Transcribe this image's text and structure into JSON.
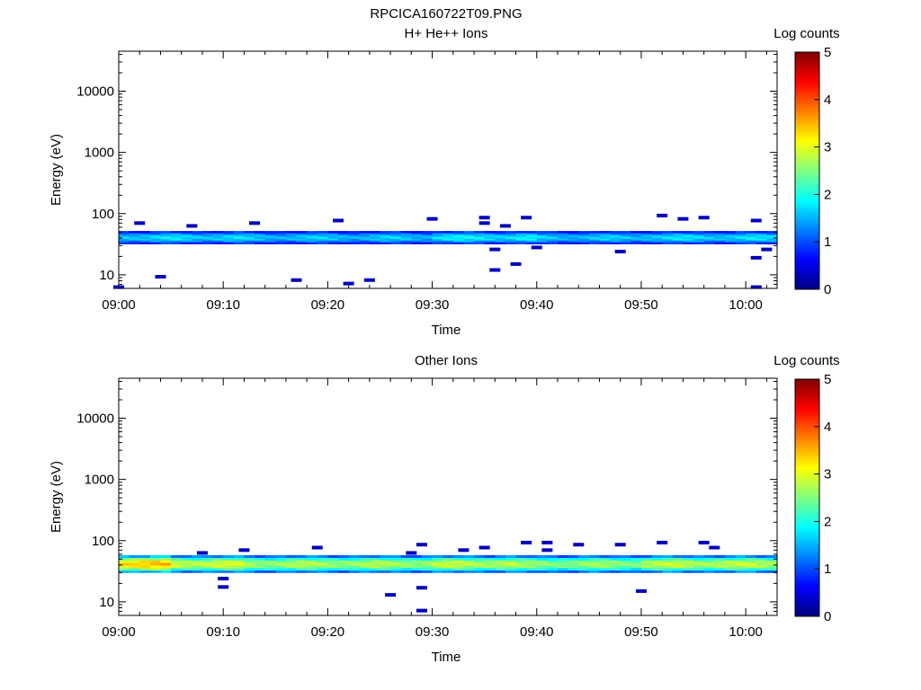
{
  "title": "RPCICA160722T09.PNG",
  "colors": {
    "background": "#ffffff",
    "axes": "#000000",
    "colormap": [
      "#000080",
      "#0000ff",
      "#0080ff",
      "#00ffff",
      "#80ff80",
      "#ffff00",
      "#ff8000",
      "#ff0000",
      "#800000"
    ]
  },
  "chart_data": [
    {
      "type": "heatmap",
      "title": "H+ He++ Ions",
      "xlabel": "Time",
      "ylabel": "Energy (eV)",
      "yscale": "log",
      "ylim": [
        6,
        45000
      ],
      "xlim": [
        "09:00",
        "10:03"
      ],
      "x_ticks": [
        "09:00",
        "09:10",
        "09:20",
        "09:30",
        "09:40",
        "09:50",
        "10:00"
      ],
      "y_ticks": [
        "10",
        "100",
        "1000",
        "10000"
      ],
      "colorbar": {
        "label": "Log counts",
        "range": [
          0,
          5
        ],
        "ticks": [
          "0",
          "1",
          "2",
          "3",
          "4",
          "5"
        ]
      },
      "band": {
        "energy_min": 32,
        "energy_max": 52,
        "segments": [
          {
            "start": "09:00",
            "end": "09:12",
            "core_value": 1.7
          },
          {
            "start": "09:12",
            "end": "09:30",
            "core_value": 1.6
          },
          {
            "start": "09:30",
            "end": "09:40",
            "core_value": 1.8
          },
          {
            "start": "09:40",
            "end": "09:50",
            "core_value": 1.6
          },
          {
            "start": "09:50",
            "end": "10:03",
            "core_value": 1.7
          }
        ]
      },
      "sparse_points": [
        {
          "t": "09:00",
          "e": 6.3,
          "v": 0.3
        },
        {
          "t": "09:02",
          "e": 70,
          "v": 0.3
        },
        {
          "t": "09:04",
          "e": 9.3,
          "v": 0.3
        },
        {
          "t": "09:07",
          "e": 63,
          "v": 0.3
        },
        {
          "t": "09:13",
          "e": 70,
          "v": 0.3
        },
        {
          "t": "09:17",
          "e": 8.2,
          "v": 0.3
        },
        {
          "t": "09:21",
          "e": 77,
          "v": 0.3
        },
        {
          "t": "09:22",
          "e": 7.2,
          "v": 0.3
        },
        {
          "t": "09:24",
          "e": 8.2,
          "v": 0.3
        },
        {
          "t": "09:30",
          "e": 82,
          "v": 0.3
        },
        {
          "t": "09:35",
          "e": 86,
          "v": 0.3
        },
        {
          "t": "09:35",
          "e": 70,
          "v": 0.3
        },
        {
          "t": "09:36",
          "e": 26,
          "v": 0.3
        },
        {
          "t": "09:36",
          "e": 12,
          "v": 0.3
        },
        {
          "t": "09:37",
          "e": 63,
          "v": 0.3
        },
        {
          "t": "09:38",
          "e": 15,
          "v": 0.3
        },
        {
          "t": "09:39",
          "e": 86,
          "v": 0.3
        },
        {
          "t": "09:40",
          "e": 28,
          "v": 0.3
        },
        {
          "t": "09:48",
          "e": 24,
          "v": 0.3
        },
        {
          "t": "09:52",
          "e": 93,
          "v": 0.3
        },
        {
          "t": "09:54",
          "e": 82,
          "v": 0.3
        },
        {
          "t": "09:56",
          "e": 86,
          "v": 0.3
        },
        {
          "t": "10:01",
          "e": 19,
          "v": 0.3
        },
        {
          "t": "10:01",
          "e": 77,
          "v": 0.3
        },
        {
          "t": "10:01",
          "e": 6.3,
          "v": 0.3
        },
        {
          "t": "10:02",
          "e": 26,
          "v": 0.3
        }
      ]
    },
    {
      "type": "heatmap",
      "title": "Other Ions",
      "xlabel": "Time",
      "ylabel": "Energy (eV)",
      "yscale": "log",
      "ylim": [
        6,
        45000
      ],
      "xlim": [
        "09:00",
        "10:03"
      ],
      "x_ticks": [
        "09:00",
        "09:10",
        "09:20",
        "09:30",
        "09:40",
        "09:50",
        "10:00"
      ],
      "y_ticks": [
        "10",
        "100",
        "1000",
        "10000"
      ],
      "colorbar": {
        "label": "Log counts",
        "range": [
          0,
          5
        ],
        "ticks": [
          "0",
          "1",
          "2",
          "3",
          "4",
          "5"
        ]
      },
      "band": {
        "energy_min": 30,
        "energy_max": 58,
        "segments": [
          {
            "start": "09:00",
            "end": "09:05",
            "core_value": 3.4
          },
          {
            "start": "09:05",
            "end": "09:12",
            "core_value": 2.9
          },
          {
            "start": "09:12",
            "end": "09:30",
            "core_value": 2.7
          },
          {
            "start": "09:30",
            "end": "09:38",
            "core_value": 2.8
          },
          {
            "start": "09:38",
            "end": "09:50",
            "core_value": 2.6
          },
          {
            "start": "09:50",
            "end": "10:03",
            "core_value": 2.8
          }
        ]
      },
      "sparse_points": [
        {
          "t": "09:08",
          "e": 63,
          "v": 0.3
        },
        {
          "t": "09:10",
          "e": 24,
          "v": 0.3
        },
        {
          "t": "09:10",
          "e": 17.5,
          "v": 0.3
        },
        {
          "t": "09:12",
          "e": 70,
          "v": 0.3
        },
        {
          "t": "09:19",
          "e": 77,
          "v": 0.3
        },
        {
          "t": "09:26",
          "e": 13,
          "v": 0.3
        },
        {
          "t": "09:28",
          "e": 63,
          "v": 0.3
        },
        {
          "t": "09:29",
          "e": 86,
          "v": 0.3
        },
        {
          "t": "09:29",
          "e": 17,
          "v": 0.3
        },
        {
          "t": "09:29",
          "e": 7.2,
          "v": 0.3
        },
        {
          "t": "09:33",
          "e": 70,
          "v": 0.3
        },
        {
          "t": "09:35",
          "e": 77,
          "v": 0.3
        },
        {
          "t": "09:39",
          "e": 93,
          "v": 0.3
        },
        {
          "t": "09:41",
          "e": 93,
          "v": 0.3
        },
        {
          "t": "09:41",
          "e": 70,
          "v": 0.3
        },
        {
          "t": "09:44",
          "e": 86,
          "v": 0.3
        },
        {
          "t": "09:48",
          "e": 86,
          "v": 0.3
        },
        {
          "t": "09:50",
          "e": 15,
          "v": 0.3
        },
        {
          "t": "09:52",
          "e": 93,
          "v": 0.3
        },
        {
          "t": "09:56",
          "e": 93,
          "v": 0.3
        },
        {
          "t": "09:57",
          "e": 77,
          "v": 0.3
        }
      ]
    }
  ]
}
